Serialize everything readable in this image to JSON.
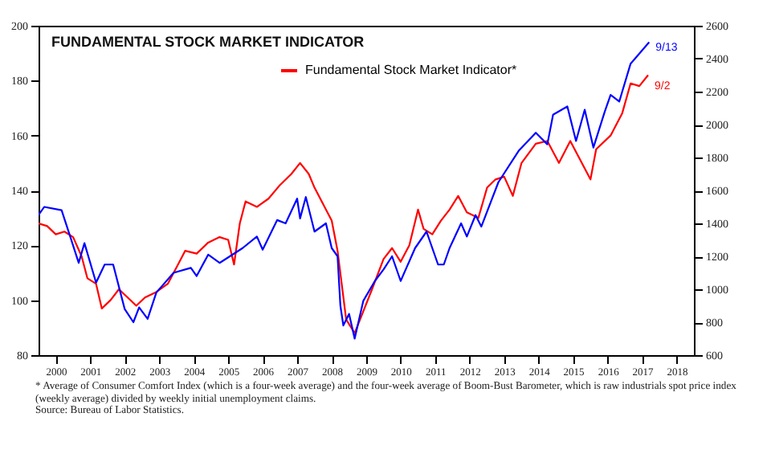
{
  "chart_data": {
    "type": "line",
    "title": "FUNDAMENTAL STOCK MARKET INDICATOR",
    "series": [
      {
        "name": "Fundamental Stock Market Indicator*",
        "color": "#ff0000",
        "x": [
          "2000-01",
          "2000-04",
          "2000-07",
          "2000-10",
          "2001-01",
          "2001-04",
          "2001-06",
          "2001-09",
          "2001-11",
          "2002-02",
          "2002-05",
          "2002-08",
          "2002-11",
          "2003-02",
          "2003-06",
          "2003-10",
          "2004-01",
          "2004-04",
          "2004-08",
          "2004-12",
          "2005-04",
          "2005-07",
          "2005-09",
          "2005-11",
          "2006-01",
          "2006-05",
          "2006-09",
          "2007-01",
          "2007-05",
          "2007-08",
          "2007-11",
          "2008-01",
          "2008-04",
          "2008-07",
          "2008-09",
          "2008-12",
          "2009-03",
          "2009-06",
          "2009-09",
          "2010-01",
          "2010-04",
          "2010-07",
          "2010-10",
          "2011-01",
          "2011-03",
          "2011-06",
          "2011-09",
          "2011-12",
          "2012-03",
          "2012-06",
          "2012-10",
          "2013-01",
          "2013-04",
          "2013-07",
          "2013-10",
          "2014-01",
          "2014-06",
          "2014-10",
          "2015-02",
          "2015-06",
          "2015-10",
          "2016-01",
          "2016-03",
          "2016-08",
          "2016-12",
          "2017-03",
          "2017-06",
          "2017-09-02"
        ],
        "values": [
          128,
          127,
          124,
          125,
          123,
          116,
          108,
          106,
          97,
          100,
          104,
          101,
          98,
          101,
          103,
          106,
          112,
          118,
          117,
          121,
          123,
          122,
          113,
          128,
          136,
          134,
          137,
          142,
          146,
          150,
          146,
          141,
          135,
          129,
          118,
          93,
          88,
          96,
          104,
          115,
          119,
          114,
          120,
          133,
          126,
          124,
          129,
          133,
          138,
          132,
          130,
          141,
          144,
          145,
          138,
          150,
          157,
          158,
          150,
          158,
          150,
          144,
          155,
          160,
          168,
          179,
          178,
          182
        ]
      },
      {
        "color": "#0000ff",
        "axis": "y2",
        "x": [
          "2000-01",
          "2000-03",
          "2000-09",
          "2000-12",
          "2001-03",
          "2001-05",
          "2001-09",
          "2001-12",
          "2002-03",
          "2002-07",
          "2002-10",
          "2002-12",
          "2003-03",
          "2003-06",
          "2003-12",
          "2004-06",
          "2004-08",
          "2004-12",
          "2005-04",
          "2005-12",
          "2006-05",
          "2006-07",
          "2006-12",
          "2007-03",
          "2007-07",
          "2007-08",
          "2007-10",
          "2008-01",
          "2008-05",
          "2008-07",
          "2008-09",
          "2008-10",
          "2008-11",
          "2009-01",
          "2009-03",
          "2009-06",
          "2009-10",
          "2010-01",
          "2010-04",
          "2010-07",
          "2010-12",
          "2011-04",
          "2011-08",
          "2011-10",
          "2011-12",
          "2012-04",
          "2012-06",
          "2012-09",
          "2012-11",
          "2013-05",
          "2013-12",
          "2014-06",
          "2014-10",
          "2014-12",
          "2015-05",
          "2015-08",
          "2015-11",
          "2016-02",
          "2016-06",
          "2016-08",
          "2016-11",
          "2017-03",
          "2017-06",
          "2017-09-13"
        ],
        "values": [
          1450,
          1500,
          1480,
          1320,
          1160,
          1280,
          1040,
          1150,
          1150,
          880,
          800,
          890,
          820,
          980,
          1100,
          1130,
          1080,
          1210,
          1160,
          1250,
          1320,
          1240,
          1420,
          1400,
          1550,
          1430,
          1560,
          1350,
          1400,
          1250,
          1200,
          900,
          780,
          850,
          700,
          930,
          1050,
          1120,
          1200,
          1050,
          1250,
          1350,
          1150,
          1150,
          1250,
          1400,
          1320,
          1450,
          1380,
          1650,
          1840,
          1950,
          1880,
          2060,
          2110,
          1900,
          2090,
          1860,
          2080,
          2180,
          2140,
          2370,
          2430,
          2500
        ]
      }
    ],
    "xlim": [
      "2000-01-01",
      "2018-12-31"
    ],
    "xticks": [
      {
        "value": "2000-07-01",
        "label": "2000"
      },
      {
        "value": "2001-07-01",
        "label": "2001"
      },
      {
        "value": "2002-07-01",
        "label": "2002"
      },
      {
        "value": "2003-07-01",
        "label": "2003"
      },
      {
        "value": "2004-07-01",
        "label": "2004"
      },
      {
        "value": "2005-07-01",
        "label": "2005"
      },
      {
        "value": "2006-07-01",
        "label": "2006"
      },
      {
        "value": "2007-07-01",
        "label": "2007"
      },
      {
        "value": "2008-07-01",
        "label": "2008"
      },
      {
        "value": "2009-07-01",
        "label": "2009"
      },
      {
        "value": "2010-07-01",
        "label": "2010"
      },
      {
        "value": "2011-07-01",
        "label": "2011"
      },
      {
        "value": "2012-07-01",
        "label": "2012"
      },
      {
        "value": "2013-07-01",
        "label": "2013"
      },
      {
        "value": "2014-07-01",
        "label": "2014"
      },
      {
        "value": "2015-07-01",
        "label": "2015"
      },
      {
        "value": "2016-07-01",
        "label": "2016"
      },
      {
        "value": "2017-07-01",
        "label": "2017"
      },
      {
        "value": "2018-07-01",
        "label": "2018"
      }
    ],
    "ylim": [
      80,
      200
    ],
    "yticks": [
      80,
      100,
      120,
      140,
      160,
      180,
      200
    ],
    "y2lim": [
      600,
      2600
    ],
    "y2ticks": [
      600,
      800,
      1000,
      1200,
      1400,
      1600,
      1800,
      2000,
      2200,
      2400,
      2600
    ],
    "grid": false,
    "legend": "top",
    "annotations": [
      {
        "text": "9/13",
        "x": "2017-09-13",
        "y": 192
      },
      {
        "text": "9/2",
        "x": "2017-09-02",
        "y": 178
      },
      "* Average of Consumer Comfort Index (which is a four-week average) and the four-week average of Boom-Bust Barometer, which is raw industrials spot price index (weekly average) divided by weekly initial unemployment claims.",
      "Source: Bureau of Labor Statistics."
    ]
  }
}
